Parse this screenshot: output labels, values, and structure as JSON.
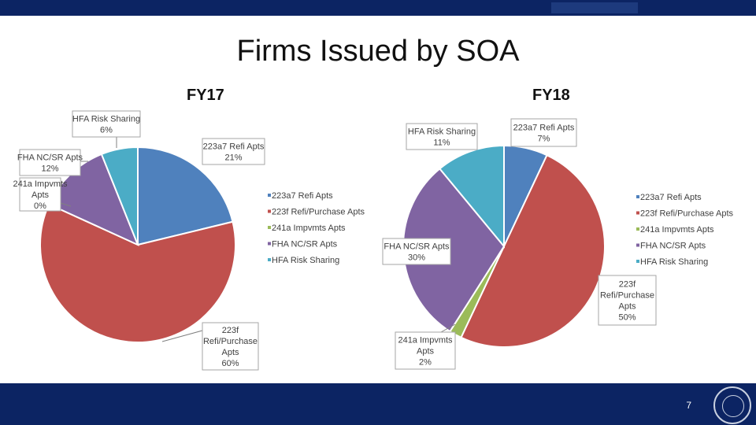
{
  "title": "Firms Issued by SOA",
  "page_number": "7",
  "colors": {
    "223a7 Refi Apts": "#4f81bd",
    "223f Refi/Purchase Apts": "#c0504d",
    "241a Impvmts Apts": "#9bbb59",
    "FHA NC/SR Apts": "#8064a2",
    "HFA Risk Sharing": "#4bacc6"
  },
  "chart_data": [
    {
      "type": "pie",
      "title": "FY17",
      "categories": [
        "223a7 Refi Apts",
        "223f Refi/Purchase Apts",
        "241a Impvmts Apts",
        "FHA NC/SR Apts",
        "HFA Risk Sharing"
      ],
      "values": [
        21,
        60,
        0,
        12,
        6
      ],
      "labels": [
        [
          "223a7 Refi Apts",
          "21%"
        ],
        [
          "223f",
          "Refi/Purchase",
          "Apts",
          "60%"
        ],
        [
          "241a Impvmts",
          "Apts",
          "0%"
        ],
        [
          "FHA NC/SR Apts",
          "12%"
        ],
        [
          "HFA Risk Sharing",
          "6%"
        ]
      ],
      "legend": [
        "223a7 Refi Apts",
        "223f Refi/Purchase Apts",
        "241a Impvmts Apts",
        "FHA NC/SR Apts",
        "HFA Risk Sharing"
      ],
      "legend_position": "right"
    },
    {
      "type": "pie",
      "title": "FY18",
      "categories": [
        "223a7 Refi Apts",
        "223f Refi/Purchase Apts",
        "241a Impvmts Apts",
        "FHA NC/SR Apts",
        "HFA Risk Sharing"
      ],
      "values": [
        7,
        50,
        2,
        30,
        11
      ],
      "labels": [
        [
          "223a7 Refi Apts",
          "7%"
        ],
        [
          "223f",
          "Refi/Purchase",
          "Apts",
          "50%"
        ],
        [
          "241a Impvmts",
          "Apts",
          "2%"
        ],
        [
          "FHA NC/SR Apts",
          "30%"
        ],
        [
          "HFA Risk Sharing",
          "11%"
        ]
      ],
      "legend": [
        "223a7 Refi Apts",
        "223f Refi/Purchase Apts",
        "241a Impvmts Apts",
        "FHA NC/SR Apts",
        "HFA Risk Sharing"
      ],
      "legend_position": "right"
    }
  ]
}
